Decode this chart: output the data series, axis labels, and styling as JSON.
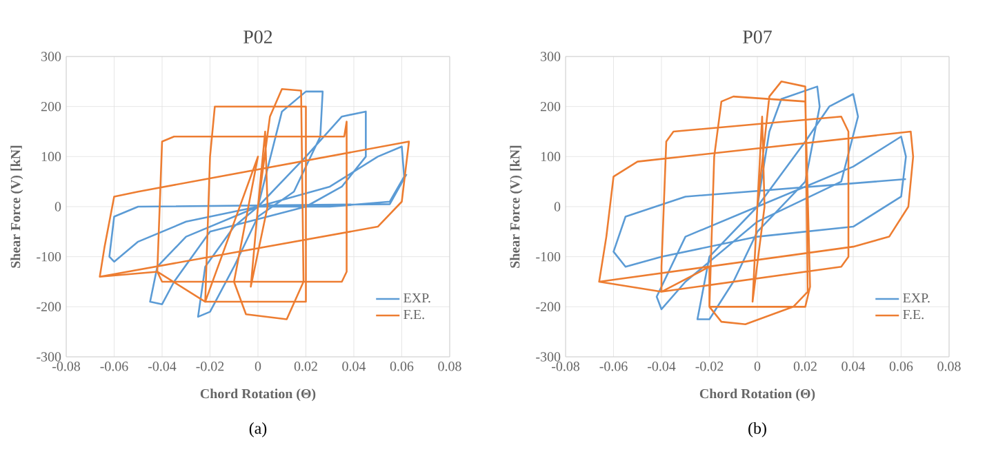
{
  "chart_data": [
    {
      "type": "line",
      "title": "P02",
      "xlabel": "Chord Rotation (Θ)",
      "ylabel": "Shear Force (V) [kN]",
      "annotations": [
        "(a)"
      ],
      "xlim": [
        -0.08,
        0.08
      ],
      "xticks": [
        -0.08,
        -0.06,
        -0.04,
        -0.02,
        0,
        0.02,
        0.04,
        0.06,
        0.08
      ],
      "ylim": [
        -300,
        300
      ],
      "yticks": [
        -300,
        -200,
        -100,
        0,
        100,
        200,
        300
      ],
      "grid": true,
      "legend": "bottom right",
      "marker": "none",
      "line_style": "solid",
      "series": [
        {
          "name": "EXP.",
          "color": "#5b9bd5",
          "x": [
            0,
            0.01,
            0.02,
            0.027,
            0.026,
            0.015,
            0,
            -0.01,
            -0.02,
            -0.025,
            -0.022,
            -0.01,
            0,
            0.02,
            0.035,
            0.045,
            0.045,
            0.035,
            0.02,
            -0.02,
            -0.035,
            -0.04,
            -0.045,
            -0.042,
            -0.03,
            0,
            0.03,
            0.05,
            0.06,
            0.061,
            0.055,
            0.03,
            0,
            -0.03,
            -0.05,
            -0.06,
            -0.062,
            -0.06,
            -0.05,
            0.055,
            0.062
          ],
          "values": [
            0,
            190,
            230,
            230,
            140,
            30,
            -20,
            -120,
            -210,
            -220,
            -120,
            -40,
            0,
            100,
            180,
            190,
            100,
            40,
            0,
            -50,
            -150,
            -195,
            -190,
            -120,
            -60,
            0,
            40,
            100,
            120,
            60,
            10,
            0,
            0,
            -30,
            -70,
            -110,
            -100,
            -20,
            0,
            5,
            65
          ]
        },
        {
          "name": "F.E.",
          "color": "#ed7d31",
          "x": [
            0,
            0.003,
            0.004,
            -0.003,
            0,
            0.005,
            0.01,
            0.018,
            0.019,
            0.012,
            -0.005,
            -0.01,
            0,
            -0.022,
            -0.02,
            -0.018,
            0.02,
            0.02,
            -0.022,
            -0.042,
            -0.04,
            -0.035,
            0.036,
            0.037,
            0.037,
            0.035,
            -0.04,
            -0.042,
            -0.066,
            -0.064,
            -0.06,
            -0.05,
            0.063,
            0.06,
            0.05,
            -0.066
          ],
          "values": [
            0,
            150,
            0,
            -160,
            0,
            180,
            235,
            232,
            -150,
            -225,
            -215,
            -150,
            100,
            -190,
            100,
            200,
            200,
            -190,
            -190,
            -130,
            130,
            140,
            140,
            170,
            -130,
            -150,
            -150,
            -130,
            -140,
            -80,
            20,
            30,
            130,
            10,
            -40,
            -140
          ]
        }
      ]
    },
    {
      "type": "line",
      "title": "P07",
      "xlabel": "Chord Rotation (Θ)",
      "ylabel": "Shear Force (V) [kN]",
      "annotations": [
        "(b)"
      ],
      "xlim": [
        -0.08,
        0.08
      ],
      "xticks": [
        -0.08,
        -0.06,
        -0.04,
        -0.02,
        0,
        0.02,
        0.04,
        0.06,
        0.08
      ],
      "ylim": [
        -300,
        300
      ],
      "yticks": [
        -300,
        -200,
        -100,
        0,
        100,
        200,
        300
      ],
      "grid": true,
      "legend": "bottom right",
      "marker": "none",
      "line_style": "solid",
      "series": [
        {
          "name": "EXP.",
          "color": "#5b9bd5",
          "x": [
            0,
            0.005,
            0.01,
            0.025,
            0.026,
            0.02,
            0,
            -0.01,
            -0.02,
            -0.025,
            -0.02,
            0,
            0.02,
            0.03,
            0.04,
            0.042,
            0.035,
            0,
            -0.03,
            -0.04,
            -0.042,
            -0.03,
            0,
            0.04,
            0.06,
            0.062,
            0.06,
            0.04,
            0,
            -0.04,
            -0.055,
            -0.06,
            -0.055,
            -0.03,
            0.062
          ],
          "values": [
            0,
            150,
            215,
            240,
            200,
            50,
            -50,
            -150,
            -225,
            -225,
            -100,
            0,
            130,
            200,
            225,
            180,
            50,
            -30,
            -150,
            -205,
            -180,
            -60,
            0,
            80,
            140,
            100,
            20,
            -40,
            -60,
            -100,
            -120,
            -90,
            -20,
            20,
            55
          ]
        },
        {
          "name": "F.E.",
          "color": "#ed7d31",
          "x": [
            0,
            0.002,
            0.003,
            -0.002,
            0,
            0.005,
            0.01,
            0.02,
            0.021,
            0.015,
            -0.005,
            -0.015,
            -0.02,
            -0.018,
            -0.015,
            -0.01,
            0.02,
            0.022,
            0.02,
            -0.02,
            -0.02,
            -0.04,
            -0.04,
            -0.038,
            -0.035,
            0.035,
            0.038,
            0.038,
            0.035,
            -0.04,
            -0.066,
            -0.063,
            -0.06,
            -0.05,
            0.064,
            0.065,
            0.063,
            0.055,
            0.04,
            -0.066
          ],
          "values": [
            0,
            180,
            0,
            -190,
            0,
            220,
            250,
            240,
            -170,
            -200,
            -235,
            -230,
            -200,
            100,
            210,
            220,
            210,
            -160,
            -200,
            -200,
            -120,
            -170,
            -120,
            130,
            150,
            180,
            150,
            -100,
            -120,
            -170,
            -150,
            -60,
            60,
            90,
            150,
            100,
            0,
            -60,
            -80,
            -150
          ]
        }
      ]
    }
  ]
}
